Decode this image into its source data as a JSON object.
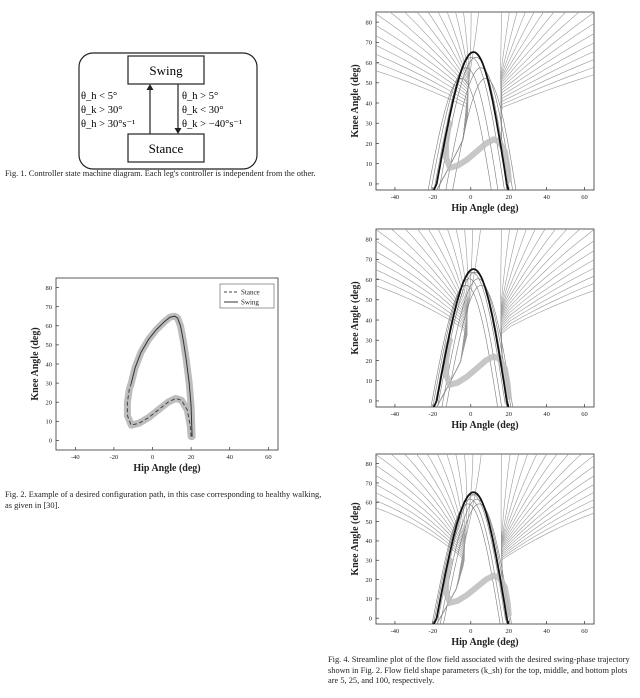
{
  "state_diagram": {
    "swing_label": "Swing",
    "stance_label": "Stance",
    "left_conditions": [
      "θ_h < 5°",
      "θ_k > 30°",
      "θ_h > 30°s⁻¹"
    ],
    "right_conditions": [
      "θ_h > 5°",
      "θ_k < 30°",
      "θ_k > −40°s⁻¹"
    ]
  },
  "fig1_caption": "Fig. 1.  Controller state machine diagram. Each leg's controller is independent from the other.",
  "fig2_caption": "Fig. 2.  Example of a desired configuration path, in this case corresponding to healthy walking, as given in [30].",
  "fig4_caption": "Fig. 4.  Streamline plot of the flow field associated with the desired swing-phase trajectory shown in Fig. 2. Flow field shape parameters (k_sh) for the top, middle, and bottom plots are 5, 25, and 100, respectively.",
  "colors": {
    "path_band": "#bdbdbd",
    "curve": "#333333",
    "streamline": "#9a9a9a"
  },
  "chart_data": [
    {
      "type": "line",
      "xlabel": "Hip Angle (deg)",
      "ylabel": "Knee Angle (deg)",
      "xlim": [
        -50,
        65
      ],
      "ylim": [
        -5,
        85
      ],
      "xticks": [
        -40,
        -20,
        0,
        20,
        40,
        60
      ],
      "yticks": [
        0,
        10,
        20,
        30,
        40,
        50,
        60,
        70,
        80
      ],
      "legend": "top-right",
      "series": [
        {
          "name": "Stance",
          "style": "dashed",
          "x": [
            20,
            19.5,
            18,
            15,
            12,
            8,
            3,
            -2,
            -7,
            -11,
            -13,
            -13,
            -12,
            -11
          ],
          "y": [
            2,
            8,
            16,
            21,
            22,
            20,
            16,
            12,
            9,
            8,
            13,
            20,
            27,
            30
          ]
        },
        {
          "name": "Swing",
          "style": "solid",
          "x": [
            -11,
            -9,
            -6,
            -2,
            2,
            6,
            9,
            11.5,
            13,
            14.5,
            16,
            17.5,
            19,
            20,
            20.3,
            20.5
          ],
          "y": [
            30,
            38,
            46,
            53,
            58,
            62,
            64.5,
            65,
            64,
            60,
            52,
            42,
            30,
            18,
            8,
            2
          ]
        }
      ]
    },
    {
      "type": "line",
      "title": "",
      "xlabel": "Hip Angle (deg)",
      "ylabel": "Knee Angle (deg)",
      "xlim": [
        -50,
        65
      ],
      "ylim": [
        -3,
        85
      ],
      "xticks": [
        -40,
        -20,
        0,
        20,
        40,
        60
      ],
      "yticks": [
        0,
        10,
        20,
        30,
        40,
        50,
        60,
        70,
        80
      ],
      "shape_parameter": 5
    },
    {
      "type": "line",
      "title": "",
      "xlabel": "Hip Angle (deg)",
      "ylabel": "Knee Angle (deg)",
      "xlim": [
        -50,
        65
      ],
      "ylim": [
        -3,
        85
      ],
      "xticks": [
        -40,
        -20,
        0,
        20,
        40,
        60
      ],
      "yticks": [
        0,
        10,
        20,
        30,
        40,
        50,
        60,
        70,
        80
      ],
      "shape_parameter": 25
    },
    {
      "type": "line",
      "title": "",
      "xlabel": "Hip Angle (deg)",
      "ylabel": "Knee Angle (deg)",
      "xlim": [
        -50,
        65
      ],
      "ylim": [
        -3,
        85
      ],
      "xticks": [
        -40,
        -20,
        0,
        20,
        40,
        60
      ],
      "yticks": [
        0,
        10,
        20,
        30,
        40,
        50,
        60,
        70,
        80
      ],
      "shape_parameter": 100
    }
  ]
}
